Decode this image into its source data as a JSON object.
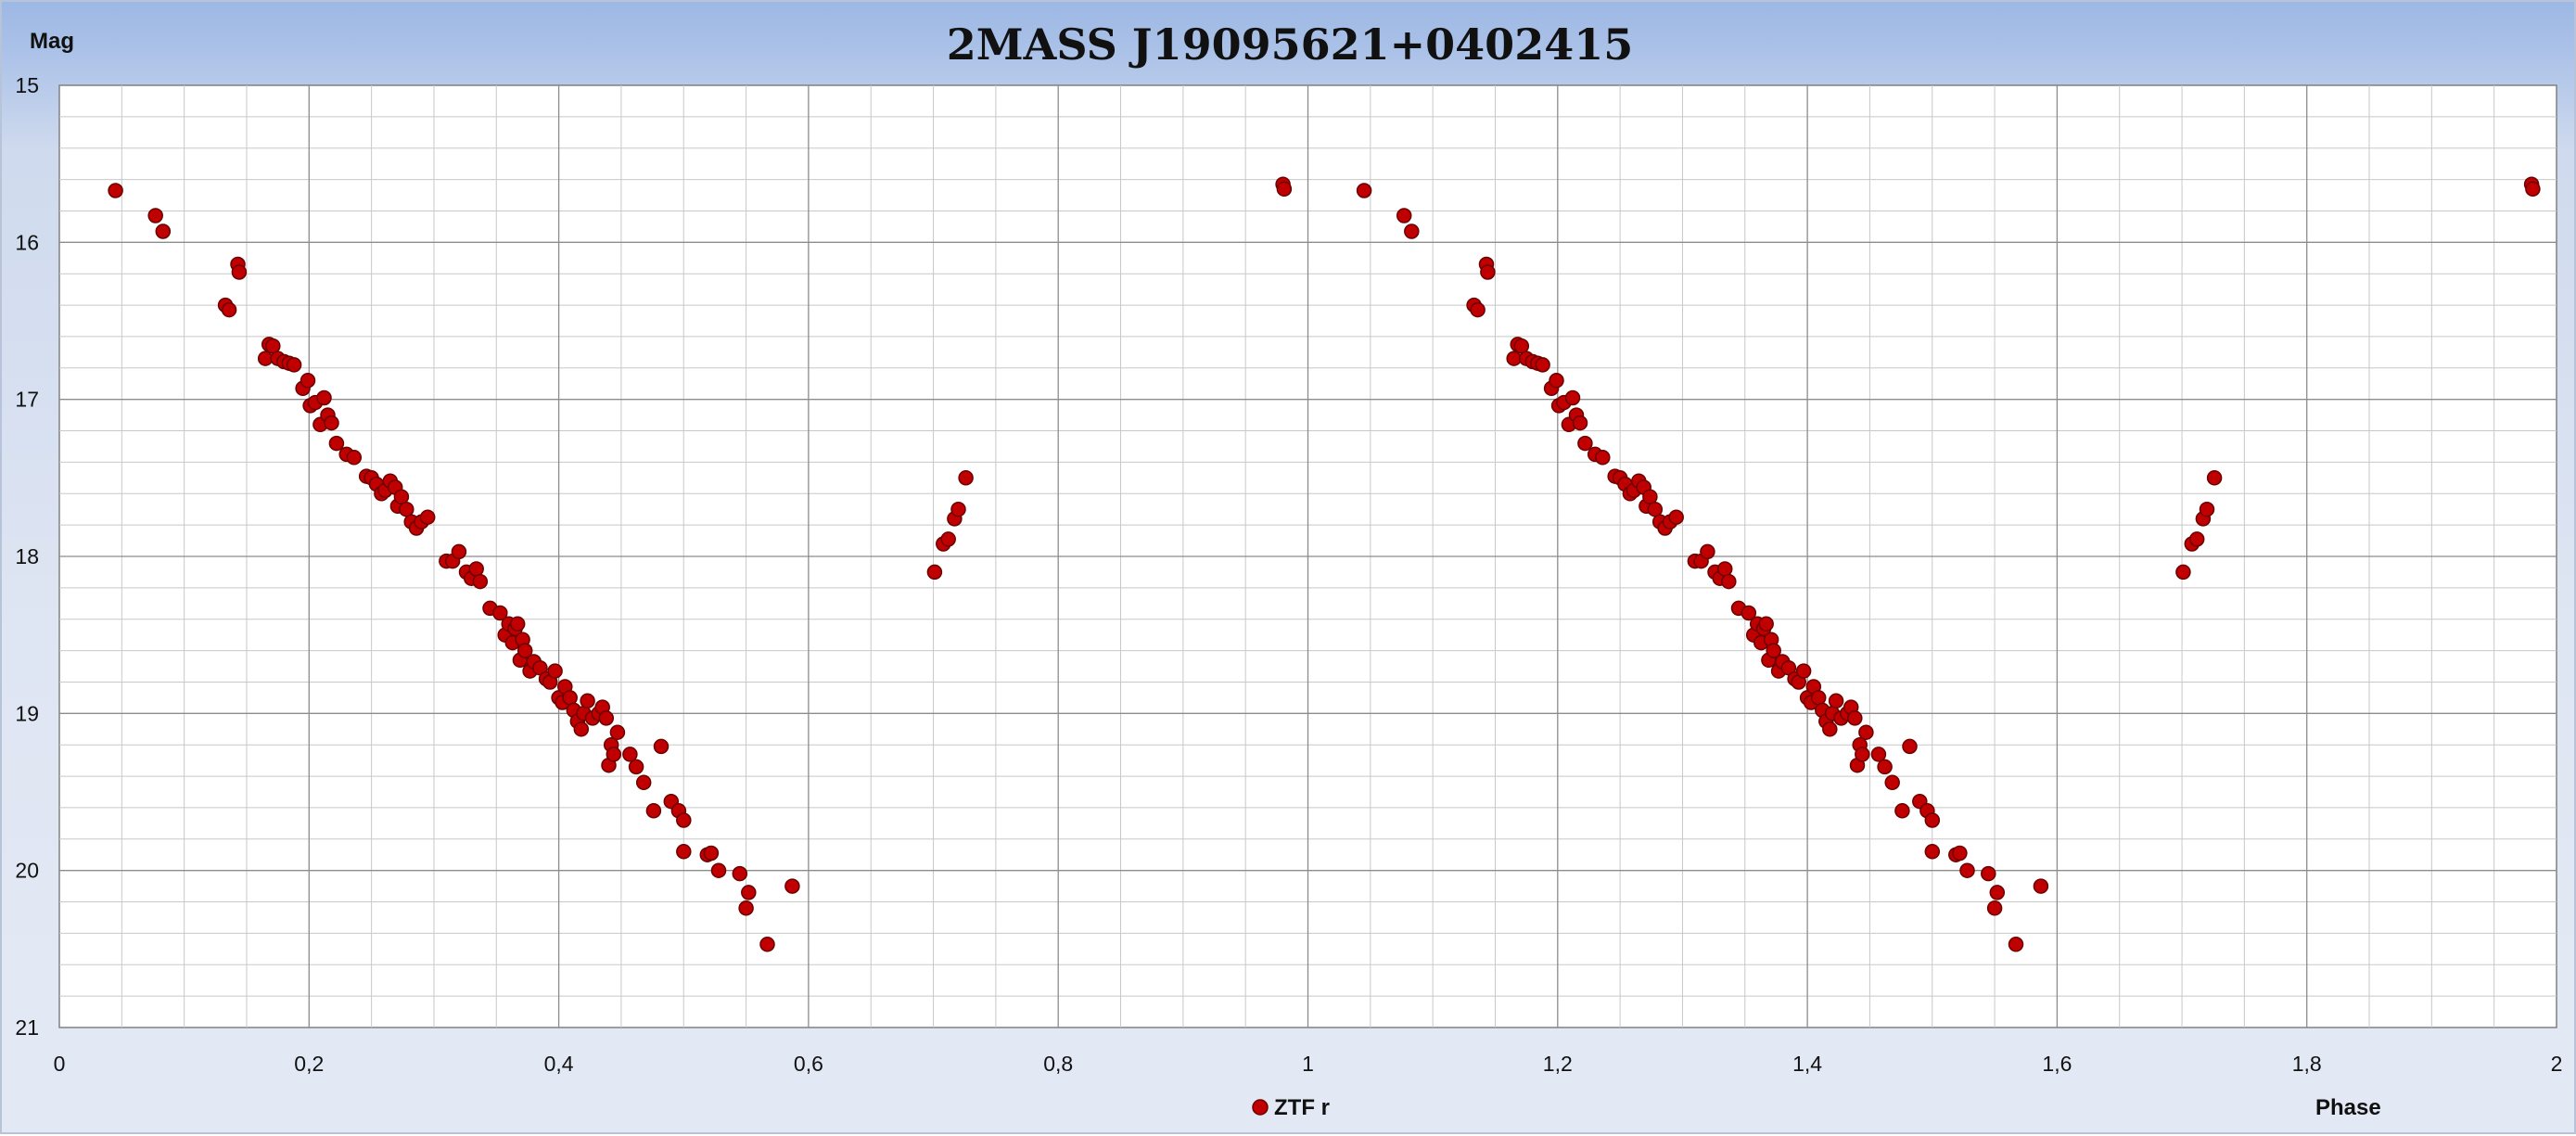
{
  "chart_data": {
    "type": "scatter",
    "title": "2MASS J19095621+0402415",
    "xlabel": "Phase",
    "ylabel": "Mag",
    "xlim": [
      0,
      2
    ],
    "ylim": [
      15,
      21
    ],
    "y_inverted": true,
    "x_ticks": [
      "0",
      "0,2",
      "0,4",
      "0,6",
      "0,8",
      "1",
      "1,2",
      "1,4",
      "1,6",
      "1,8",
      "2"
    ],
    "y_ticks": [
      "15",
      "16",
      "17",
      "18",
      "19",
      "20",
      "21"
    ],
    "grid": true,
    "legend_position": "bottom-center",
    "series": [
      {
        "name": "ZTF r",
        "color": "#c00000",
        "points": [
          [
            0.045,
            15.67
          ],
          [
            0.077,
            15.83
          ],
          [
            0.083,
            15.93
          ],
          [
            0.133,
            16.4
          ],
          [
            0.136,
            16.43
          ],
          [
            0.143,
            16.14
          ],
          [
            0.144,
            16.19
          ],
          [
            0.165,
            16.74
          ],
          [
            0.168,
            16.65
          ],
          [
            0.171,
            16.66
          ],
          [
            0.175,
            16.74
          ],
          [
            0.18,
            16.76
          ],
          [
            0.184,
            16.77
          ],
          [
            0.188,
            16.78
          ],
          [
            0.195,
            16.93
          ],
          [
            0.199,
            16.88
          ],
          [
            0.201,
            17.04
          ],
          [
            0.205,
            17.02
          ],
          [
            0.209,
            17.16
          ],
          [
            0.212,
            16.99
          ],
          [
            0.215,
            17.1
          ],
          [
            0.218,
            17.15
          ],
          [
            0.222,
            17.28
          ],
          [
            0.23,
            17.35
          ],
          [
            0.236,
            17.37
          ],
          [
            0.246,
            17.49
          ],
          [
            0.25,
            17.5
          ],
          [
            0.254,
            17.54
          ],
          [
            0.258,
            17.6
          ],
          [
            0.261,
            17.58
          ],
          [
            0.265,
            17.52
          ],
          [
            0.269,
            17.56
          ],
          [
            0.271,
            17.68
          ],
          [
            0.274,
            17.62
          ],
          [
            0.278,
            17.7
          ],
          [
            0.282,
            17.78
          ],
          [
            0.286,
            17.82
          ],
          [
            0.29,
            17.78
          ],
          [
            0.295,
            17.75
          ],
          [
            0.31,
            18.03
          ],
          [
            0.315,
            18.03
          ],
          [
            0.32,
            17.97
          ],
          [
            0.326,
            18.1
          ],
          [
            0.33,
            18.14
          ],
          [
            0.334,
            18.08
          ],
          [
            0.337,
            18.16
          ],
          [
            0.345,
            18.33
          ],
          [
            0.353,
            18.36
          ],
          [
            0.357,
            18.5
          ],
          [
            0.36,
            18.43
          ],
          [
            0.363,
            18.55
          ],
          [
            0.365,
            18.46
          ],
          [
            0.367,
            18.43
          ],
          [
            0.369,
            18.66
          ],
          [
            0.371,
            18.53
          ],
          [
            0.373,
            18.6
          ],
          [
            0.377,
            18.73
          ],
          [
            0.38,
            18.67
          ],
          [
            0.385,
            18.71
          ],
          [
            0.39,
            18.78
          ],
          [
            0.393,
            18.8
          ],
          [
            0.397,
            18.73
          ],
          [
            0.4,
            18.9
          ],
          [
            0.403,
            18.93
          ],
          [
            0.405,
            18.83
          ],
          [
            0.409,
            18.9
          ],
          [
            0.412,
            18.98
          ],
          [
            0.415,
            19.05
          ],
          [
            0.418,
            19.1
          ],
          [
            0.42,
            19.0
          ],
          [
            0.423,
            18.92
          ],
          [
            0.427,
            19.03
          ],
          [
            0.432,
            19.0
          ],
          [
            0.435,
            18.96
          ],
          [
            0.438,
            19.03
          ],
          [
            0.44,
            19.33
          ],
          [
            0.442,
            19.2
          ],
          [
            0.444,
            19.26
          ],
          [
            0.447,
            19.12
          ],
          [
            0.457,
            19.26
          ],
          [
            0.462,
            19.34
          ],
          [
            0.468,
            19.44
          ],
          [
            0.476,
            19.62
          ],
          [
            0.482,
            19.21
          ],
          [
            0.49,
            19.56
          ],
          [
            0.496,
            19.62
          ],
          [
            0.5,
            19.68
          ],
          [
            0.5,
            19.88
          ],
          [
            0.519,
            19.9
          ],
          [
            0.522,
            19.89
          ],
          [
            0.528,
            20.0
          ],
          [
            0.545,
            20.02
          ],
          [
            0.55,
            20.24
          ],
          [
            0.552,
            20.14
          ],
          [
            0.567,
            20.47
          ],
          [
            0.587,
            20.1
          ],
          [
            0.701,
            18.1
          ],
          [
            0.708,
            17.92
          ],
          [
            0.712,
            17.89
          ],
          [
            0.717,
            17.76
          ],
          [
            0.72,
            17.7
          ],
          [
            0.726,
            17.5
          ],
          [
            0.98,
            15.63
          ],
          [
            0.981,
            15.66
          ]
        ]
      }
    ]
  }
}
